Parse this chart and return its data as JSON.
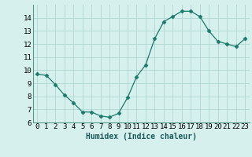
{
  "x": [
    0,
    1,
    2,
    3,
    4,
    5,
    6,
    7,
    8,
    9,
    10,
    11,
    12,
    13,
    14,
    15,
    16,
    17,
    18,
    19,
    20,
    21,
    22,
    23
  ],
  "y": [
    9.7,
    9.6,
    8.9,
    8.1,
    7.5,
    6.8,
    6.8,
    6.5,
    6.4,
    6.7,
    7.9,
    9.5,
    10.4,
    12.4,
    13.7,
    14.1,
    14.5,
    14.5,
    14.1,
    13.0,
    12.2,
    12.0,
    11.8,
    12.4
  ],
  "line_color": "#1a7a6a",
  "marker": "D",
  "marker_size": 2.5,
  "bg_color": "#d6f0ee",
  "grid_color": "#b0d8d3",
  "xlabel": "Humidex (Indice chaleur)",
  "xlabel_fontsize": 7,
  "xlim": [
    -0.5,
    23.5
  ],
  "ylim": [
    6,
    15
  ],
  "yticks": [
    6,
    7,
    8,
    9,
    10,
    11,
    12,
    13,
    14
  ],
  "xticks": [
    0,
    1,
    2,
    3,
    4,
    5,
    6,
    7,
    8,
    9,
    10,
    11,
    12,
    13,
    14,
    15,
    16,
    17,
    18,
    19,
    20,
    21,
    22,
    23
  ],
  "tick_fontsize": 6.5,
  "spine_color": "#5a9a8a"
}
